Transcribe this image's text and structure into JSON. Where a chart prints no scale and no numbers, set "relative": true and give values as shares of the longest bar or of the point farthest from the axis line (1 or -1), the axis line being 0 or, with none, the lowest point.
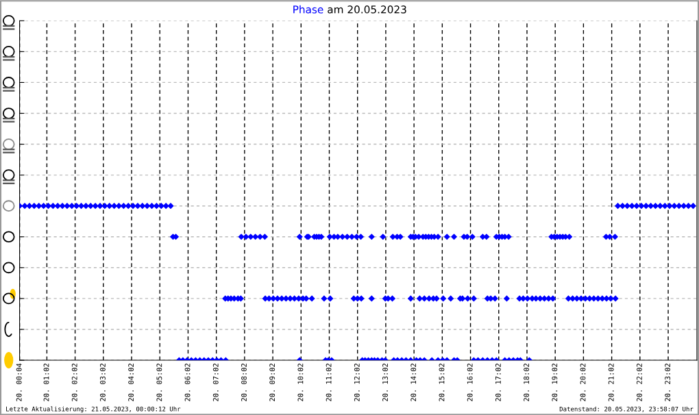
{
  "chart_data": {
    "type": "scatter",
    "title": "Phase am 20.05.2023",
    "annotations": [
      "Letzte Aktualisierung: 21.05.2023, 00:00:12 Uhr",
      "Datenstand: 20.05.2023, 23:58:07 Uhr"
    ],
    "series": [
      {
        "color": "#0000ff",
        "x": [
          "2023-05-20T00:04",
          "2023-05-20T00:15",
          "2023-05-20T00:25",
          "2023-05-20T00:35",
          "2023-05-20T00:45",
          "2023-05-20T00:55",
          "2023-05-20T01:05",
          "2023-05-20T01:15",
          "2023-05-20T01:25",
          "2023-05-20T01:35",
          "2023-05-20T01:45",
          "2023-05-20T01:55",
          "2023-05-20T02:05",
          "2023-05-20T02:15",
          "2023-05-20T02:25",
          "2023-05-20T02:35",
          "2023-05-20T02:45",
          "2023-05-20T02:55",
          "2023-05-20T03:05",
          "2023-05-20T03:15",
          "2023-05-20T03:25",
          "2023-05-20T03:35",
          "2023-05-20T03:45",
          "2023-05-20T03:55",
          "2023-05-20T04:05",
          "2023-05-20T04:15",
          "2023-05-20T04:25",
          "2023-05-20T04:35",
          "2023-05-20T04:45",
          "2023-05-20T04:55",
          "2023-05-20T05:05",
          "2023-05-20T05:15",
          "2023-05-20T05:25",
          "2023-05-20T21:15",
          "2023-05-20T21:25",
          "2023-05-20T21:35",
          "2023-05-20T21:45",
          "2023-05-20T21:55",
          "2023-05-20T22:05",
          "2023-05-20T22:15",
          "2023-05-20T22:25",
          "2023-05-20T22:35",
          "2023-05-20T22:45",
          "2023-05-20T22:55",
          "2023-05-20T23:05",
          "2023-05-20T23:15",
          "2023-05-20T23:25",
          "2023-05-20T23:35",
          "2023-05-20T23:45",
          "2023-05-20T23:55",
          "2023-05-20T05:30",
          "2023-05-20T05:36",
          "2023-05-20T07:55",
          "2023-05-20T08:05",
          "2023-05-20T08:15",
          "2023-05-20T08:25",
          "2023-05-20T08:35",
          "2023-05-20T08:45",
          "2023-05-20T09:59",
          "2023-05-20T10:15",
          "2023-05-20T10:18",
          "2023-05-20T10:30",
          "2023-05-20T10:35",
          "2023-05-20T10:40",
          "2023-05-20T10:45",
          "2023-05-20T11:03",
          "2023-05-20T11:12",
          "2023-05-20T11:20",
          "2023-05-20T11:30",
          "2023-05-20T11:40",
          "2023-05-20T11:50",
          "2023-05-20T12:00",
          "2023-05-20T12:09",
          "2023-05-20T12:32",
          "2023-05-20T12:56",
          "2023-05-20T13:17",
          "2023-05-20T13:26",
          "2023-05-20T13:33",
          "2023-05-20T13:55",
          "2023-05-20T14:00",
          "2023-05-20T14:05",
          "2023-05-20T14:12",
          "2023-05-20T14:21",
          "2023-05-20T14:27",
          "2023-05-20T14:33",
          "2023-05-20T14:39",
          "2023-05-20T14:45",
          "2023-05-20T14:53",
          "2023-05-20T15:12",
          "2023-05-20T15:27",
          "2023-05-20T15:48",
          "2023-05-20T15:55",
          "2023-05-20T16:06",
          "2023-05-20T16:28",
          "2023-05-20T16:36",
          "2023-05-20T16:57",
          "2023-05-20T17:03",
          "2023-05-20T17:09",
          "2023-05-20T17:15",
          "2023-05-20T17:23",
          "2023-05-20T18:54",
          "2023-05-20T19:00",
          "2023-05-20T19:06",
          "2023-05-20T19:12",
          "2023-05-20T19:18",
          "2023-05-20T19:24",
          "2023-05-20T19:32",
          "2023-05-20T20:50",
          "2023-05-20T20:58",
          "2023-05-20T21:09",
          "2023-05-20T07:21",
          "2023-05-20T07:27",
          "2023-05-20T07:33",
          "2023-05-20T07:40",
          "2023-05-20T07:48",
          "2023-05-20T07:54",
          "2023-05-20T08:46",
          "2023-05-20T08:54",
          "2023-05-20T09:03",
          "2023-05-20T09:12",
          "2023-05-20T09:21",
          "2023-05-20T09:30",
          "2023-05-20T09:39",
          "2023-05-20T09:48",
          "2023-05-20T09:57",
          "2023-05-20T10:06",
          "2023-05-20T10:13",
          "2023-05-20T10:25",
          "2023-05-20T10:51",
          "2023-05-20T11:04",
          "2023-05-20T11:54",
          "2023-05-20T12:02",
          "2023-05-20T12:10",
          "2023-05-20T12:32",
          "2023-05-20T13:01",
          "2023-05-20T13:07",
          "2023-05-20T13:16",
          "2023-05-20T13:55",
          "2023-05-20T14:14",
          "2023-05-20T14:24",
          "2023-05-20T14:34",
          "2023-05-20T14:43",
          "2023-05-20T14:50",
          "2023-05-20T15:04",
          "2023-05-20T15:20",
          "2023-05-20T15:40",
          "2023-05-20T15:45",
          "2023-05-20T15:56",
          "2023-05-20T16:09",
          "2023-05-20T16:38",
          "2023-05-20T16:45",
          "2023-05-20T16:54",
          "2023-05-20T17:19",
          "2023-05-20T17:46",
          "2023-05-20T17:54",
          "2023-05-20T18:03",
          "2023-05-20T18:13",
          "2023-05-20T18:21",
          "2023-05-20T18:30",
          "2023-05-20T18:39",
          "2023-05-20T18:48",
          "2023-05-20T18:57",
          "2023-05-20T19:30",
          "2023-05-20T19:39",
          "2023-05-20T19:48",
          "2023-05-20T19:57",
          "2023-05-20T20:06",
          "2023-05-20T20:15",
          "2023-05-20T20:24",
          "2023-05-20T20:33",
          "2023-05-20T20:42",
          "2023-05-20T20:51",
          "2023-05-20T21:00",
          "2023-05-20T21:10",
          "2023-05-20T05:43",
          "2023-05-20T05:51",
          "2023-05-20T06:00",
          "2023-05-20T06:09",
          "2023-05-20T06:18",
          "2023-05-20T06:27",
          "2023-05-20T06:36",
          "2023-05-20T06:45",
          "2023-05-20T06:54",
          "2023-05-20T07:03",
          "2023-05-20T07:12",
          "2023-05-20T07:22",
          "2023-05-20T09:59",
          "2023-05-20T10:54",
          "2023-05-20T11:00",
          "2023-05-20T11:07",
          "2023-05-20T12:12",
          "2023-05-20T12:18",
          "2023-05-20T12:25",
          "2023-05-20T12:32",
          "2023-05-20T12:38",
          "2023-05-20T12:45",
          "2023-05-20T12:54",
          "2023-05-20T13:01",
          "2023-05-20T13:19",
          "2023-05-20T13:27",
          "2023-05-20T13:36",
          "2023-05-20T13:45",
          "2023-05-20T13:55",
          "2023-05-20T14:07",
          "2023-05-20T14:15",
          "2023-05-20T14:24",
          "2023-05-20T14:40",
          "2023-05-20T14:53",
          "2023-05-20T15:03",
          "2023-05-20T15:12",
          "2023-05-20T15:27",
          "2023-05-20T15:34",
          "2023-05-20T16:09",
          "2023-05-20T16:18",
          "2023-05-20T16:28",
          "2023-05-20T16:38",
          "2023-05-20T16:48",
          "2023-05-20T16:57",
          "2023-05-20T17:15",
          "2023-05-20T17:24",
          "2023-05-20T17:33",
          "2023-05-20T17:42",
          "2023-05-20T17:48",
          "2023-05-20T18:07"
        ],
        "values": [
          1,
          1,
          1,
          1,
          1,
          1,
          1,
          1,
          1,
          1,
          1,
          1,
          1,
          1,
          1,
          1,
          1,
          1,
          1,
          1,
          1,
          1,
          1,
          1,
          1,
          1,
          1,
          1,
          1,
          1,
          1,
          1,
          1,
          1,
          1,
          1,
          1,
          1,
          1,
          1,
          1,
          1,
          1,
          1,
          1,
          1,
          1,
          1,
          1,
          1,
          0.8,
          0.8,
          0.8,
          0.8,
          0.8,
          0.8,
          0.8,
          0.8,
          0.8,
          0.8,
          0.8,
          0.8,
          0.8,
          0.8,
          0.8,
          0.8,
          0.8,
          0.8,
          0.8,
          0.8,
          0.8,
          0.8,
          0.8,
          0.8,
          0.8,
          0.8,
          0.8,
          0.8,
          0.8,
          0.8,
          0.8,
          0.8,
          0.8,
          0.8,
          0.8,
          0.8,
          0.8,
          0.8,
          0.8,
          0.8,
          0.8,
          0.8,
          0.8,
          0.8,
          0.8,
          0.8,
          0.8,
          0.8,
          0.8,
          0.8,
          0.8,
          0.8,
          0.8,
          0.8,
          0.8,
          0.8,
          0.8,
          0.8,
          0.8,
          0.8,
          0.4,
          0.4,
          0.4,
          0.4,
          0.4,
          0.4,
          0.4,
          0.4,
          0.4,
          0.4,
          0.4,
          0.4,
          0.4,
          0.4,
          0.4,
          0.4,
          0.4,
          0.4,
          0.4,
          0.4,
          0.4,
          0.4,
          0.4,
          0.4,
          0.4,
          0.4,
          0.4,
          0.4,
          0.4,
          0.4,
          0.4,
          0.4,
          0.4,
          0.4,
          0.4,
          0.4,
          0.4,
          0.4,
          0.4,
          0.4,
          0.4,
          0.4,
          0.4,
          0.4,
          0.4,
          0.4,
          0.4,
          0.4,
          0.4,
          0.4,
          0.4,
          0.4,
          0.4,
          0.4,
          0.4,
          0.4,
          0.4,
          0.4,
          0.4,
          0.4,
          0.4,
          0.4,
          0.4,
          0.4,
          0,
          0,
          0,
          0,
          0,
          0,
          0,
          0,
          0,
          0,
          0,
          0,
          0,
          0,
          0,
          0,
          0,
          0,
          0,
          0,
          0,
          0,
          0,
          0,
          0,
          0,
          0,
          0,
          0,
          0,
          0,
          0,
          0,
          0,
          0,
          0,
          0,
          0,
          0,
          0,
          0,
          0,
          0,
          0,
          0,
          0,
          0,
          0,
          0,
          0
        ]
      }
    ],
    "xlim": [
      "2023-05-20T00:04",
      "2023-05-21T00:03"
    ],
    "xticks": [
      {
        "value": "2023-05-20T00:04",
        "label": "20. 00:04"
      },
      {
        "value": "2023-05-20T01:02",
        "label": "20. 01:02"
      },
      {
        "value": "2023-05-20T02:02",
        "label": "20. 02:02"
      },
      {
        "value": "2023-05-20T03:02",
        "label": "20. 03:02"
      },
      {
        "value": "2023-05-20T04:02",
        "label": "20. 04:02"
      },
      {
        "value": "2023-05-20T05:02",
        "label": "20. 05:02"
      },
      {
        "value": "2023-05-20T06:02",
        "label": "20. 06:02"
      },
      {
        "value": "2023-05-20T07:02",
        "label": "20. 07:02"
      },
      {
        "value": "2023-05-20T08:02",
        "label": "20. 08:02"
      },
      {
        "value": "2023-05-20T09:02",
        "label": "20. 09:02"
      },
      {
        "value": "2023-05-20T10:02",
        "label": "20. 10:02"
      },
      {
        "value": "2023-05-20T11:02",
        "label": "20. 11:02"
      },
      {
        "value": "2023-05-20T12:02",
        "label": "20. 12:02"
      },
      {
        "value": "2023-05-20T13:02",
        "label": "20. 13:02"
      },
      {
        "value": "2023-05-20T14:02",
        "label": "20. 14:02"
      },
      {
        "value": "2023-05-20T15:02",
        "label": "20. 15:02"
      },
      {
        "value": "2023-05-20T16:02",
        "label": "20. 16:02"
      },
      {
        "value": "2023-05-20T17:02",
        "label": "20. 17:02"
      },
      {
        "value": "2023-05-20T18:02",
        "label": "20. 18:02"
      },
      {
        "value": "2023-05-20T19:02",
        "label": "20. 19:02"
      },
      {
        "value": "2023-05-20T20:02",
        "label": "20. 20:02"
      },
      {
        "value": "2023-05-20T21:02",
        "label": "20. 21:02"
      },
      {
        "value": "2023-05-20T22:02",
        "label": "20. 22:02"
      },
      {
        "value": "2023-05-20T23:02",
        "label": "20. 23:02"
      }
    ],
    "relative": true,
    "tick_labels": "x",
    "grid": true,
    "marker": "diamond"
  }
}
